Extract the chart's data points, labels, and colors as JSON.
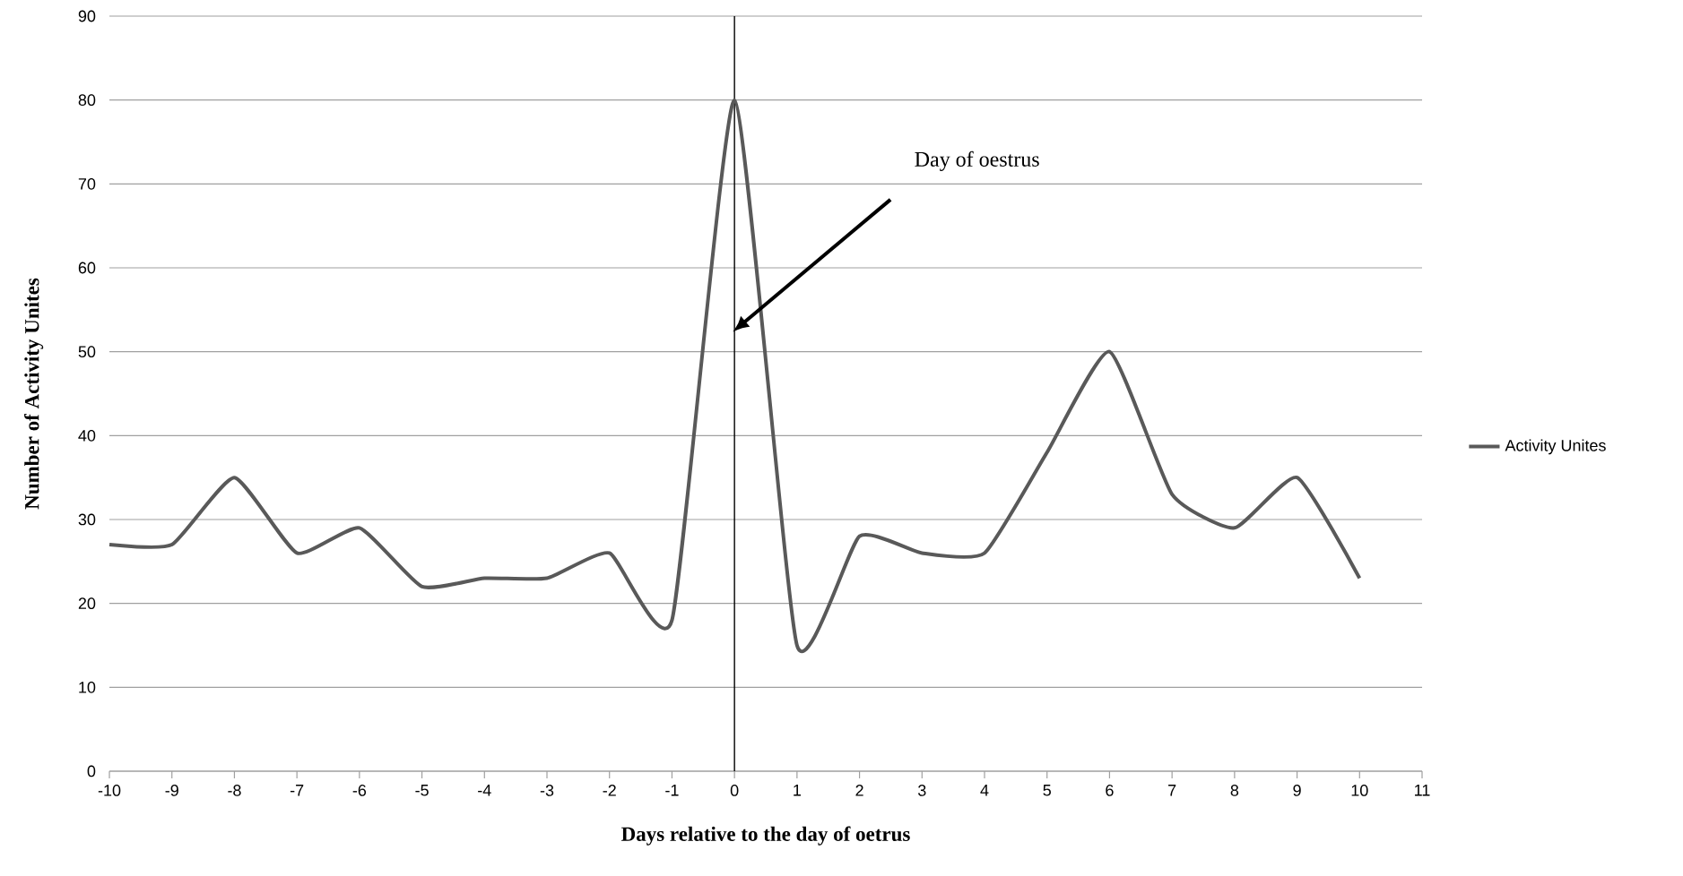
{
  "chart_data": {
    "type": "line",
    "xlabel": "Days relative to the day of oetrus",
    "ylabel": "Number of Activity Unites",
    "x": [
      -10,
      -9,
      -8,
      -7,
      -6,
      -5,
      -4,
      -3,
      -2,
      -1,
      0,
      1,
      2,
      3,
      4,
      5,
      6,
      7,
      8,
      9,
      10
    ],
    "series": [
      {
        "name": "Activity Unites",
        "color": "#595959",
        "values": [
          27,
          27,
          35,
          26,
          29,
          22,
          23,
          23,
          26,
          18,
          80,
          15,
          28,
          26,
          26,
          38,
          50,
          33,
          29,
          35,
          23
        ]
      }
    ],
    "xlim": [
      -10,
      11
    ],
    "xticks": [
      -10,
      -9,
      -8,
      -7,
      -6,
      -5,
      -4,
      -3,
      -2,
      -1,
      0,
      1,
      2,
      3,
      4,
      5,
      6,
      7,
      8,
      9,
      10,
      11
    ],
    "ylim": [
      0,
      90
    ],
    "yticks": [
      0,
      10,
      20,
      30,
      40,
      50,
      60,
      70,
      80,
      90
    ],
    "grid": "y",
    "legend": "right",
    "marker": "none",
    "line_style": "solid",
    "ref_lines": [
      {
        "axis": "x",
        "value": 0,
        "color": "#000000"
      }
    ],
    "annotations": [
      "Day of oestrus"
    ]
  }
}
